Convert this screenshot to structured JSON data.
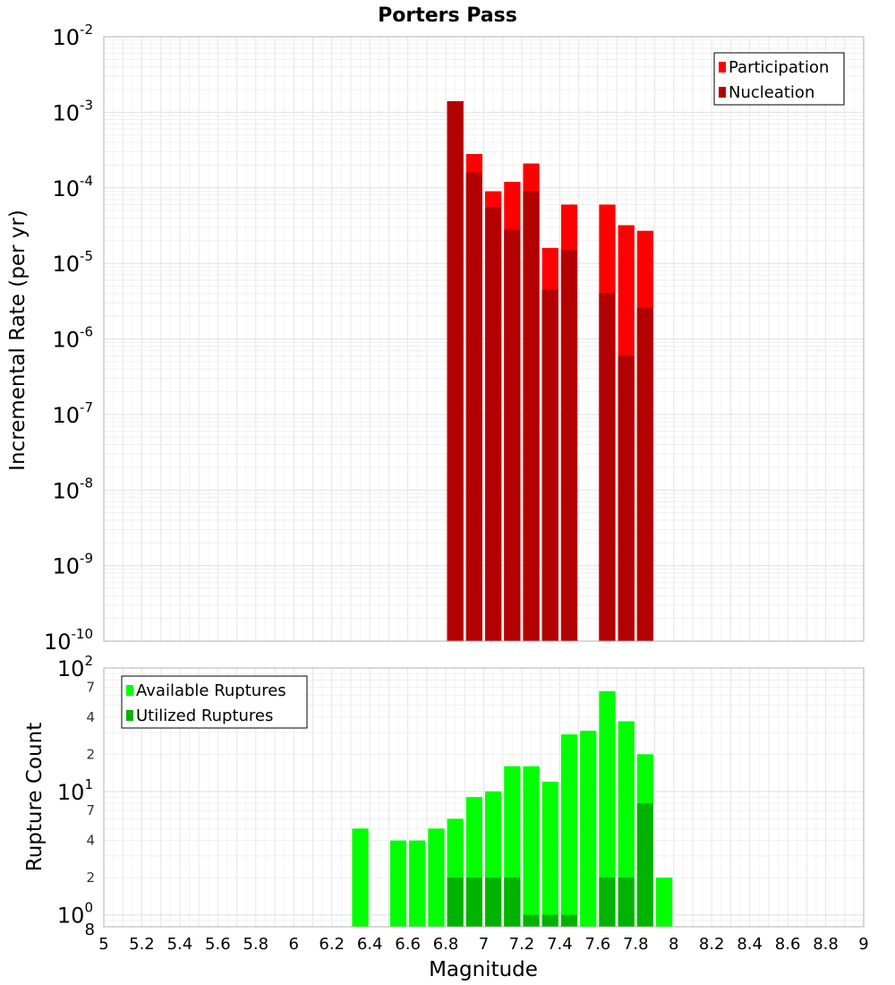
{
  "chart_data": [
    {
      "type": "bar",
      "panel": "top",
      "title": "Porters Pass",
      "ylabel": "Incremental Rate (per yr)",
      "yscale": "log",
      "ylim": [
        1e-10,
        0.01
      ],
      "xlim": [
        5,
        9
      ],
      "bin_width": 0.1,
      "ytick_labels": [
        {
          "base": "10",
          "exp": "-10"
        },
        {
          "base": "10",
          "exp": "-9"
        },
        {
          "base": "10",
          "exp": "-8"
        },
        {
          "base": "10",
          "exp": "-7"
        },
        {
          "base": "10",
          "exp": "-6"
        },
        {
          "base": "10",
          "exp": "-5"
        },
        {
          "base": "10",
          "exp": "-4"
        },
        {
          "base": "10",
          "exp": "-3"
        },
        {
          "base": "10",
          "exp": "-2"
        }
      ],
      "legend_position": "top-right",
      "legend": [
        "Participation",
        "Nucleation"
      ],
      "colors": {
        "Participation": "#ff0000",
        "Nucleation": "#b30000"
      },
      "x": [
        6.85,
        6.95,
        7.05,
        7.15,
        7.25,
        7.35,
        7.45,
        7.65,
        7.75,
        7.85
      ],
      "series": [
        {
          "name": "Participation",
          "values": [
            0.0014,
            0.00028,
            9e-05,
            0.00012,
            0.00021,
            1.6e-05,
            6e-05,
            6e-05,
            3.2e-05,
            2.7e-05
          ]
        },
        {
          "name": "Nucleation",
          "values": [
            0.0014,
            0.00016,
            5.5e-05,
            2.8e-05,
            9e-05,
            4.5e-06,
            1.5e-05,
            4e-06,
            6e-07,
            2.6e-06
          ]
        }
      ]
    },
    {
      "type": "bar",
      "panel": "bottom",
      "xlabel": "Magnitude",
      "ylabel": "Rupture Count",
      "yscale": "log",
      "ylim": [
        0.8,
        100
      ],
      "xlim": [
        5,
        9
      ],
      "bin_width": 0.1,
      "xtick_labels": [
        "5",
        "5.2",
        "5.4",
        "5.6",
        "5.8",
        "6",
        "6.2",
        "6.4",
        "6.6",
        "6.8",
        "7",
        "7.2",
        "7.4",
        "7.6",
        "7.8",
        "8",
        "8.2",
        "8.4",
        "8.6",
        "8.8",
        "9"
      ],
      "ytick_labels": [
        {
          "base": "10",
          "exp": "2"
        },
        {
          "base": "10",
          "exp": "1"
        },
        {
          "base": "10",
          "exp": "0"
        }
      ],
      "minor_tick_labels": [
        {
          "value": 70,
          "label": "7"
        },
        {
          "value": 40,
          "label": "4"
        },
        {
          "value": 20,
          "label": "2"
        },
        {
          "value": 7,
          "label": "7"
        },
        {
          "value": 4,
          "label": "4"
        },
        {
          "value": 2,
          "label": "2"
        },
        {
          "value": 0.8,
          "label": "8"
        }
      ],
      "legend_position": "top-left",
      "legend": [
        "Available Ruptures",
        "Utilized Ruptures"
      ],
      "colors": {
        "Available Ruptures": "#00ff00",
        "Utilized Ruptures": "#00b300"
      },
      "x": [
        6.35,
        6.55,
        6.65,
        6.75,
        6.85,
        6.95,
        7.05,
        7.15,
        7.25,
        7.35,
        7.45,
        7.55,
        7.65,
        7.75,
        7.85,
        7.95
      ],
      "series": [
        {
          "name": "Available Ruptures",
          "values": [
            5,
            4,
            4,
            5,
            6,
            9,
            10,
            16,
            16,
            12,
            29,
            31,
            65,
            37,
            20,
            2
          ]
        },
        {
          "name": "Utilized Ruptures",
          "values": [
            null,
            null,
            null,
            null,
            2,
            2,
            2,
            2,
            1,
            1,
            1,
            null,
            2,
            2,
            8,
            null
          ]
        }
      ]
    }
  ]
}
